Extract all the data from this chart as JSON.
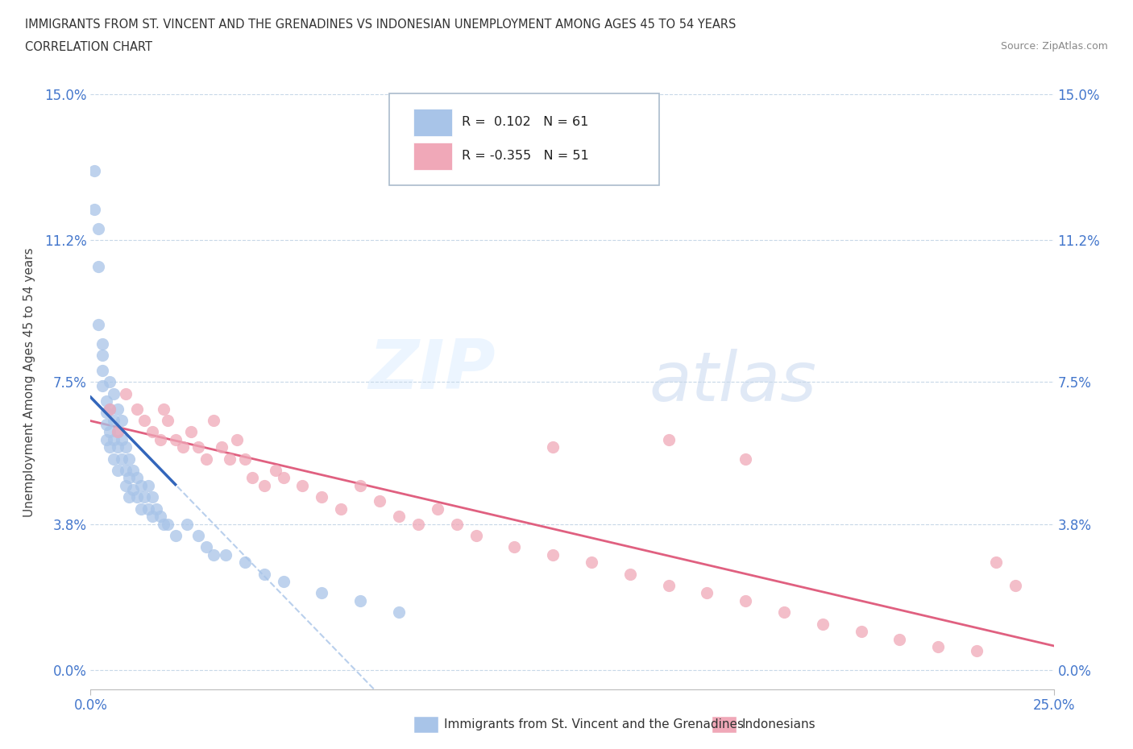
{
  "title_line1": "IMMIGRANTS FROM ST. VINCENT AND THE GRENADINES VS INDONESIAN UNEMPLOYMENT AMONG AGES 45 TO 54 YEARS",
  "title_line2": "CORRELATION CHART",
  "source_text": "Source: ZipAtlas.com",
  "ylabel": "Unemployment Among Ages 45 to 54 years",
  "xmin": 0.0,
  "xmax": 0.25,
  "ymin": 0.0,
  "ymax": 0.15,
  "yticks": [
    0.0,
    0.038,
    0.075,
    0.112,
    0.15
  ],
  "ytick_labels": [
    "0.0%",
    "3.8%",
    "7.5%",
    "11.2%",
    "15.0%"
  ],
  "xtick_labels": [
    "0.0%",
    "25.0%"
  ],
  "r_blue": 0.102,
  "n_blue": 61,
  "r_pink": -0.355,
  "n_pink": 51,
  "legend_label_blue": "Immigrants from St. Vincent and the Grenadines",
  "legend_label_pink": "Indonesians",
  "watermark_zip": "ZIP",
  "watermark_atlas": "atlas",
  "blue_color": "#A8C4E8",
  "pink_color": "#F0A8B8",
  "trendline_blue_dashed_color": "#A8C4E8",
  "trendline_blue_solid_color": "#3366BB",
  "trendline_pink_color": "#E06080",
  "blue_x": [
    0.001,
    0.001,
    0.002,
    0.002,
    0.002,
    0.003,
    0.003,
    0.003,
    0.003,
    0.004,
    0.004,
    0.004,
    0.004,
    0.005,
    0.005,
    0.005,
    0.005,
    0.006,
    0.006,
    0.006,
    0.006,
    0.007,
    0.007,
    0.007,
    0.007,
    0.008,
    0.008,
    0.008,
    0.009,
    0.009,
    0.009,
    0.01,
    0.01,
    0.01,
    0.011,
    0.011,
    0.012,
    0.012,
    0.013,
    0.013,
    0.014,
    0.015,
    0.015,
    0.016,
    0.016,
    0.017,
    0.018,
    0.019,
    0.02,
    0.022,
    0.025,
    0.028,
    0.03,
    0.032,
    0.035,
    0.04,
    0.045,
    0.05,
    0.06,
    0.07,
    0.08
  ],
  "blue_y": [
    0.13,
    0.12,
    0.115,
    0.105,
    0.09,
    0.085,
    0.082,
    0.078,
    0.074,
    0.07,
    0.067,
    0.064,
    0.06,
    0.075,
    0.068,
    0.062,
    0.058,
    0.072,
    0.065,
    0.06,
    0.055,
    0.068,
    0.062,
    0.058,
    0.052,
    0.065,
    0.06,
    0.055,
    0.058,
    0.052,
    0.048,
    0.055,
    0.05,
    0.045,
    0.052,
    0.047,
    0.05,
    0.045,
    0.048,
    0.042,
    0.045,
    0.048,
    0.042,
    0.045,
    0.04,
    0.042,
    0.04,
    0.038,
    0.038,
    0.035,
    0.038,
    0.035,
    0.032,
    0.03,
    0.03,
    0.028,
    0.025,
    0.023,
    0.02,
    0.018,
    0.015
  ],
  "pink_x": [
    0.005,
    0.007,
    0.009,
    0.012,
    0.014,
    0.016,
    0.018,
    0.019,
    0.02,
    0.022,
    0.024,
    0.026,
    0.028,
    0.03,
    0.032,
    0.034,
    0.036,
    0.038,
    0.04,
    0.042,
    0.045,
    0.048,
    0.05,
    0.055,
    0.06,
    0.065,
    0.07,
    0.075,
    0.08,
    0.085,
    0.09,
    0.095,
    0.1,
    0.11,
    0.12,
    0.13,
    0.14,
    0.15,
    0.16,
    0.17,
    0.18,
    0.19,
    0.2,
    0.21,
    0.22,
    0.23,
    0.235,
    0.24,
    0.12,
    0.15,
    0.17
  ],
  "pink_y": [
    0.068,
    0.062,
    0.072,
    0.068,
    0.065,
    0.062,
    0.06,
    0.068,
    0.065,
    0.06,
    0.058,
    0.062,
    0.058,
    0.055,
    0.065,
    0.058,
    0.055,
    0.06,
    0.055,
    0.05,
    0.048,
    0.052,
    0.05,
    0.048,
    0.045,
    0.042,
    0.048,
    0.044,
    0.04,
    0.038,
    0.042,
    0.038,
    0.035,
    0.032,
    0.03,
    0.028,
    0.025,
    0.022,
    0.02,
    0.018,
    0.015,
    0.012,
    0.01,
    0.008,
    0.006,
    0.005,
    0.028,
    0.022,
    0.058,
    0.06,
    0.055
  ]
}
